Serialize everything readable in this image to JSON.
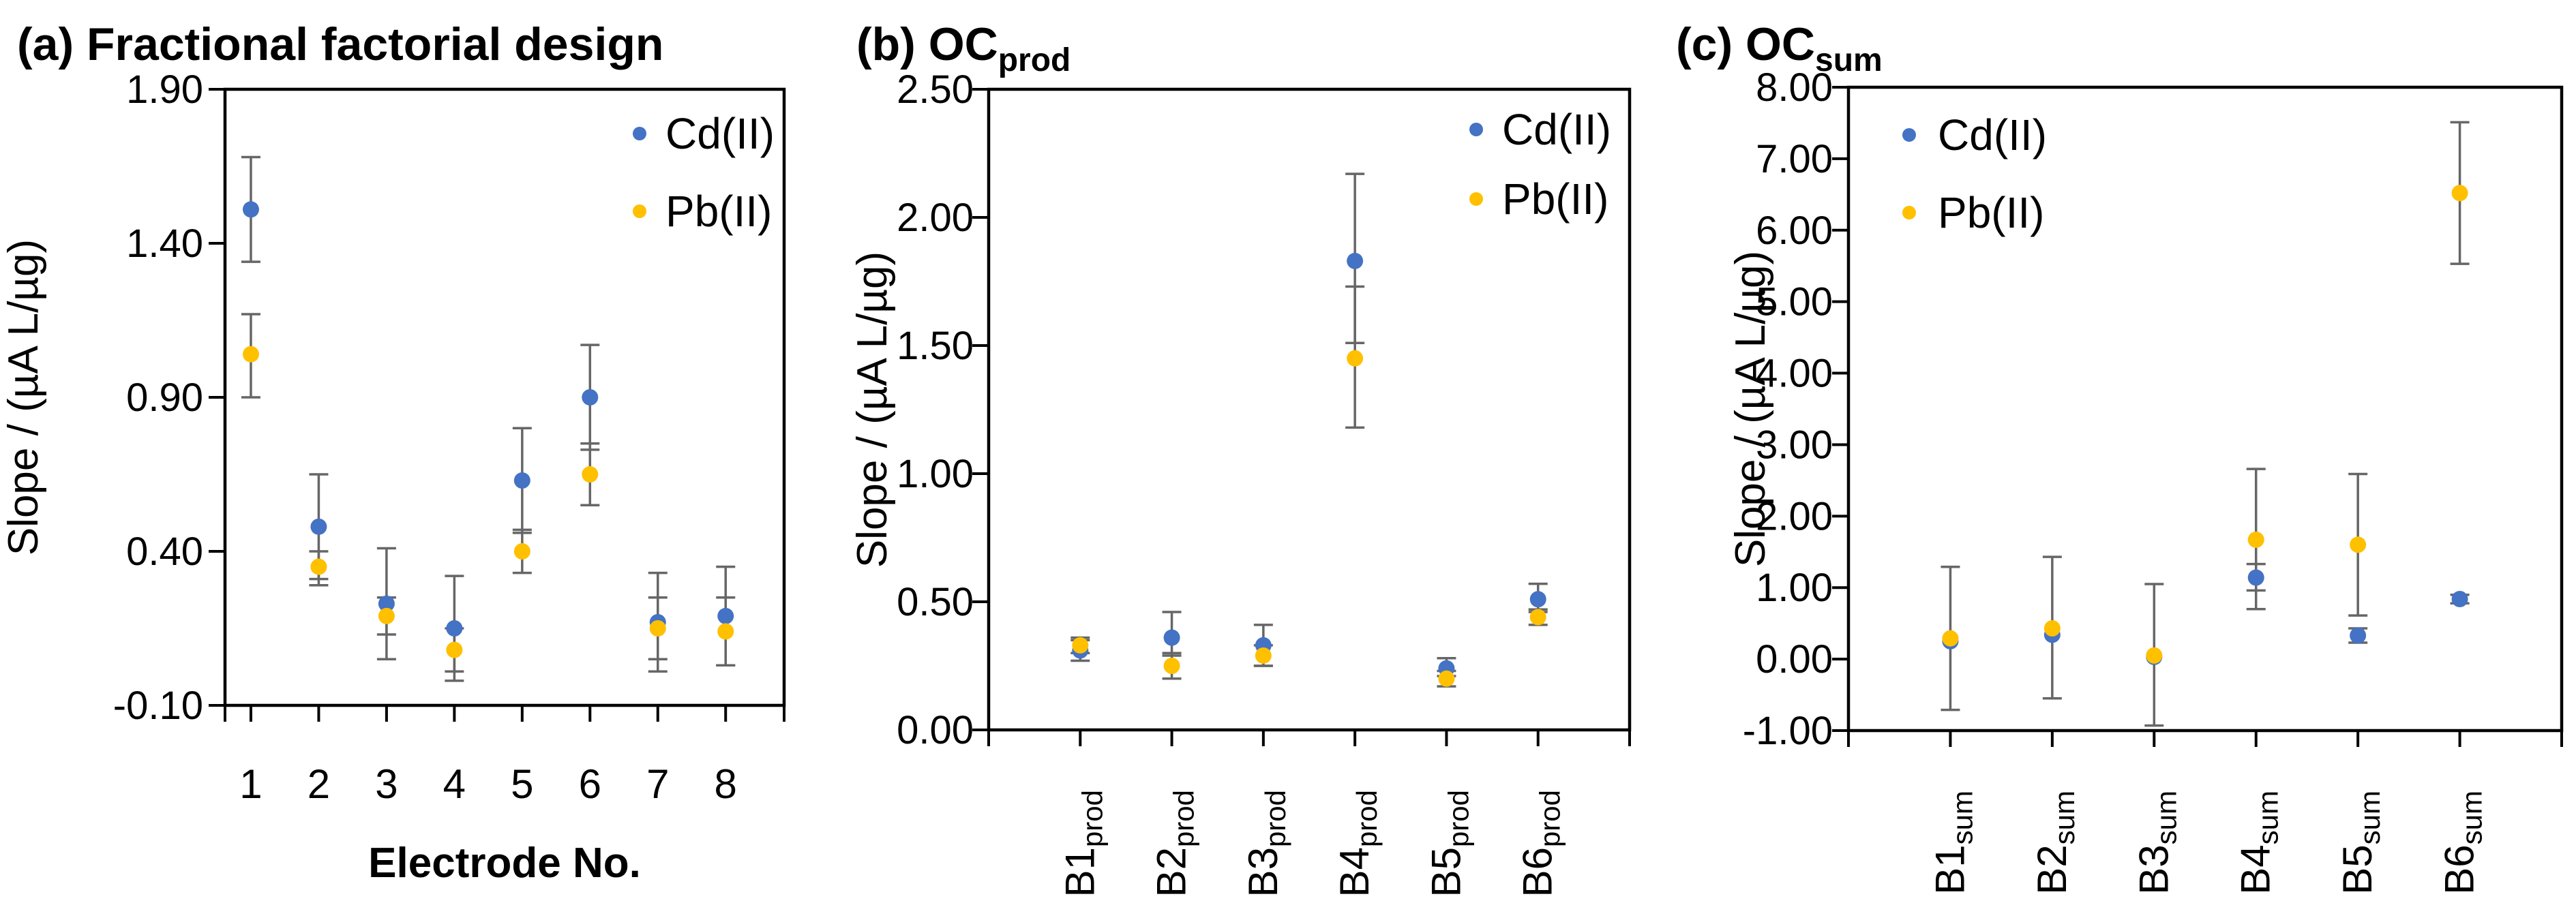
{
  "figure": {
    "background": "#ffffff",
    "colors": {
      "cd": "#4472C4",
      "pb": "#FFC000",
      "error_bar": "#666666",
      "axis": "#000000"
    }
  },
  "chart_data": [
    {
      "id": "a",
      "type": "scatter",
      "title": {
        "prefix": "(a)",
        "main": "Fractional factorial design",
        "subscript": null
      },
      "ylabel": "Slope / (µA L/µg)",
      "xlabel": "Electrode No.",
      "ylim": [
        -0.1,
        1.9
      ],
      "yticks": [
        1.9,
        1.4,
        0.9,
        0.4,
        -0.1
      ],
      "ytick_labels": [
        "1.90",
        "1.40",
        "0.90",
        "0.40",
        "-0.10"
      ],
      "grid": false,
      "categories": [
        {
          "base": "1",
          "sub": null
        },
        {
          "base": "2",
          "sub": null
        },
        {
          "base": "3",
          "sub": null
        },
        {
          "base": "4",
          "sub": null
        },
        {
          "base": "5",
          "sub": null
        },
        {
          "base": "6",
          "sub": null
        },
        {
          "base": "7",
          "sub": null
        },
        {
          "base": "8",
          "sub": null
        }
      ],
      "rotated_category_labels": false,
      "legend": {
        "position": "top-right",
        "entries": [
          {
            "label": "Cd(II)",
            "series": "cd"
          },
          {
            "label": "Pb(II)",
            "series": "pb"
          }
        ]
      },
      "series": [
        {
          "key": "cd",
          "name": "Cd(II)",
          "points": [
            {
              "y": 1.51,
              "lo": 1.34,
              "hi": 1.68
            },
            {
              "y": 0.48,
              "lo": 0.31,
              "hi": 0.65
            },
            {
              "y": 0.23,
              "lo": 0.05,
              "hi": 0.41
            },
            {
              "y": 0.15,
              "lo": -0.02,
              "hi": 0.32
            },
            {
              "y": 0.63,
              "lo": 0.46,
              "hi": 0.8
            },
            {
              "y": 0.9,
              "lo": 0.73,
              "hi": 1.07
            },
            {
              "y": 0.17,
              "lo": 0.01,
              "hi": 0.33
            },
            {
              "y": 0.19,
              "lo": 0.03,
              "hi": 0.35
            }
          ]
        },
        {
          "key": "pb",
          "name": "Pb(II)",
          "points": [
            {
              "y": 1.04,
              "lo": 0.9,
              "hi": 1.17
            },
            {
              "y": 0.35,
              "lo": 0.29,
              "hi": 0.4
            },
            {
              "y": 0.19,
              "lo": 0.13,
              "hi": 0.25
            },
            {
              "y": 0.08,
              "lo": 0.01,
              "hi": 0.15
            },
            {
              "y": 0.4,
              "lo": 0.33,
              "hi": 0.47
            },
            {
              "y": 0.65,
              "lo": 0.55,
              "hi": 0.75
            },
            {
              "y": 0.15,
              "lo": 0.05,
              "hi": 0.25
            },
            {
              "y": 0.14,
              "lo": 0.03,
              "hi": 0.25
            }
          ]
        }
      ]
    },
    {
      "id": "b",
      "type": "scatter",
      "title": {
        "prefix": "(b)",
        "main": "OC",
        "subscript": "prod"
      },
      "ylabel": "Slope / (µA L/µg)",
      "xlabel": null,
      "ylim": [
        0.0,
        2.5
      ],
      "yticks": [
        2.5,
        2.0,
        1.5,
        1.0,
        0.5,
        0.0
      ],
      "ytick_labels": [
        "2.50",
        "2.00",
        "1.50",
        "1.00",
        "0.50",
        "0.00"
      ],
      "grid": false,
      "categories": [
        {
          "base": "B1",
          "sub": "prod"
        },
        {
          "base": "B2",
          "sub": "prod"
        },
        {
          "base": "B3",
          "sub": "prod"
        },
        {
          "base": "B4",
          "sub": "prod"
        },
        {
          "base": "B5",
          "sub": "prod"
        },
        {
          "base": "B6",
          "sub": "prod"
        }
      ],
      "rotated_category_labels": true,
      "legend": {
        "position": "top-right",
        "entries": [
          {
            "label": "Cd(II)",
            "series": "cd"
          },
          {
            "label": "Pb(II)",
            "series": "pb"
          }
        ]
      },
      "series": [
        {
          "key": "cd",
          "name": "Cd(II)",
          "points": [
            {
              "y": 0.31,
              "lo": 0.27,
              "hi": 0.35
            },
            {
              "y": 0.36,
              "lo": 0.29,
              "hi": 0.46
            },
            {
              "y": 0.33,
              "lo": 0.25,
              "hi": 0.41
            },
            {
              "y": 1.83,
              "lo": 1.51,
              "hi": 2.17
            },
            {
              "y": 0.24,
              "lo": 0.21,
              "hi": 0.28
            },
            {
              "y": 0.51,
              "lo": 0.46,
              "hi": 0.57
            }
          ]
        },
        {
          "key": "pb",
          "name": "Pb(II)",
          "points": [
            {
              "y": 0.33,
              "lo": 0.3,
              "hi": 0.36
            },
            {
              "y": 0.25,
              "lo": 0.2,
              "hi": 0.3
            },
            {
              "y": 0.29,
              "lo": 0.25,
              "hi": 0.33
            },
            {
              "y": 1.45,
              "lo": 1.18,
              "hi": 1.73
            },
            {
              "y": 0.2,
              "lo": 0.17,
              "hi": 0.23
            },
            {
              "y": 0.44,
              "lo": 0.41,
              "hi": 0.47
            }
          ]
        }
      ]
    },
    {
      "id": "c",
      "type": "scatter",
      "title": {
        "prefix": "(c)",
        "main": "OC",
        "subscript": "sum"
      },
      "ylabel": "Slope / (µA L/µg)",
      "xlabel": null,
      "ylim": [
        -1.0,
        8.0
      ],
      "yticks": [
        8.0,
        7.0,
        6.0,
        5.0,
        4.0,
        3.0,
        2.0,
        1.0,
        0.0,
        -1.0
      ],
      "ytick_labels": [
        "8.00",
        "7.00",
        "6.00",
        "5.00",
        "4.00",
        "3.00",
        "2.00",
        "1.00",
        "0.00",
        "-1.00"
      ],
      "grid": false,
      "categories": [
        {
          "base": "B1",
          "sub": "sum"
        },
        {
          "base": "B2",
          "sub": "sum"
        },
        {
          "base": "B3",
          "sub": "sum"
        },
        {
          "base": "B4",
          "sub": "sum"
        },
        {
          "base": "B5",
          "sub": "sum"
        },
        {
          "base": "B6",
          "sub": "sum"
        }
      ],
      "rotated_category_labels": true,
      "legend": {
        "position": "top-left",
        "entries": [
          {
            "label": "Cd(II)",
            "series": "cd"
          },
          {
            "label": "Pb(II)",
            "series": "pb"
          }
        ]
      },
      "series": [
        {
          "key": "cd",
          "name": "Cd(II)",
          "points": [
            {
              "y": 0.25,
              "lo": 0.25,
              "hi": 0.25
            },
            {
              "y": 0.34,
              "lo": 0.34,
              "hi": 0.34
            },
            {
              "y": 0.03,
              "lo": 0.03,
              "hi": 0.03
            },
            {
              "y": 1.14,
              "lo": 0.96,
              "hi": 1.33
            },
            {
              "y": 0.33,
              "lo": 0.23,
              "hi": 0.43
            },
            {
              "y": 0.84,
              "lo": 0.78,
              "hi": 0.9
            }
          ]
        },
        {
          "key": "pb",
          "name": "Pb(II)",
          "points": [
            {
              "y": 0.29,
              "lo": -0.71,
              "hi": 1.29
            },
            {
              "y": 0.43,
              "lo": -0.55,
              "hi": 1.43
            },
            {
              "y": 0.05,
              "lo": -0.93,
              "hi": 1.05
            },
            {
              "y": 1.67,
              "lo": 0.7,
              "hi": 2.66
            },
            {
              "y": 1.6,
              "lo": 0.61,
              "hi": 2.59
            },
            {
              "y": 6.52,
              "lo": 5.53,
              "hi": 7.51
            }
          ]
        }
      ]
    }
  ]
}
